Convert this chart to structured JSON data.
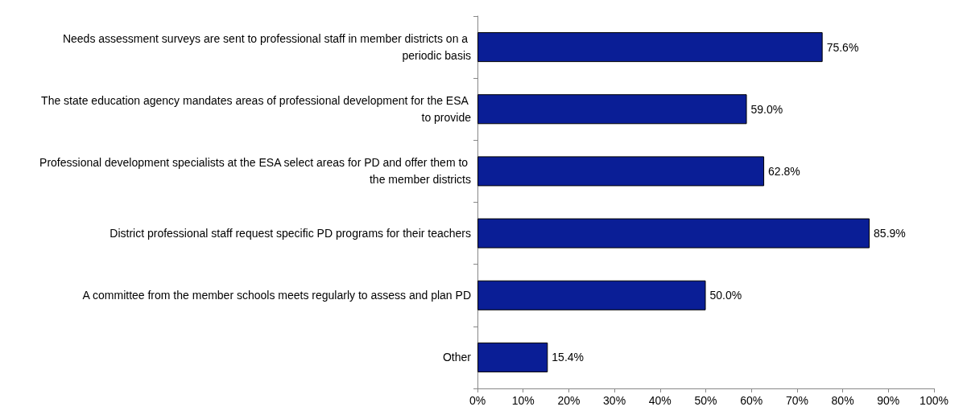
{
  "chart_data": {
    "type": "bar",
    "orientation": "horizontal",
    "categories": [
      "Needs assessment surveys are sent to professional staff in member districts on a periodic basis",
      "The state education agency mandates areas of professional development for the ESA to provide",
      "Professional development specialists at the ESA select areas for PD and offer them to the member districts",
      "District professional staff request specific PD programs for their teachers",
      "A committee from the member schools meets regularly to assess and plan PD",
      "Other"
    ],
    "values": [
      75.6,
      59.0,
      62.8,
      85.9,
      50.0,
      15.4
    ],
    "value_labels": [
      "75.6%",
      "59.0%",
      "62.8%",
      "85.9%",
      "50.0%",
      "15.4%"
    ],
    "color": "#0a1e96",
    "xlim": [
      0,
      100
    ],
    "xticks": [
      {
        "value": 0,
        "label": "0%"
      },
      {
        "value": 10,
        "label": "10%"
      },
      {
        "value": 20,
        "label": "20%"
      },
      {
        "value": 30,
        "label": "30%"
      },
      {
        "value": 40,
        "label": "40%"
      },
      {
        "value": 50,
        "label": "50%"
      },
      {
        "value": 60,
        "label": "60%"
      },
      {
        "value": 70,
        "label": "70%"
      },
      {
        "value": 80,
        "label": "80%"
      },
      {
        "value": 90,
        "label": "90%"
      },
      {
        "value": 100,
        "label": "100%"
      }
    ],
    "grid": false
  }
}
